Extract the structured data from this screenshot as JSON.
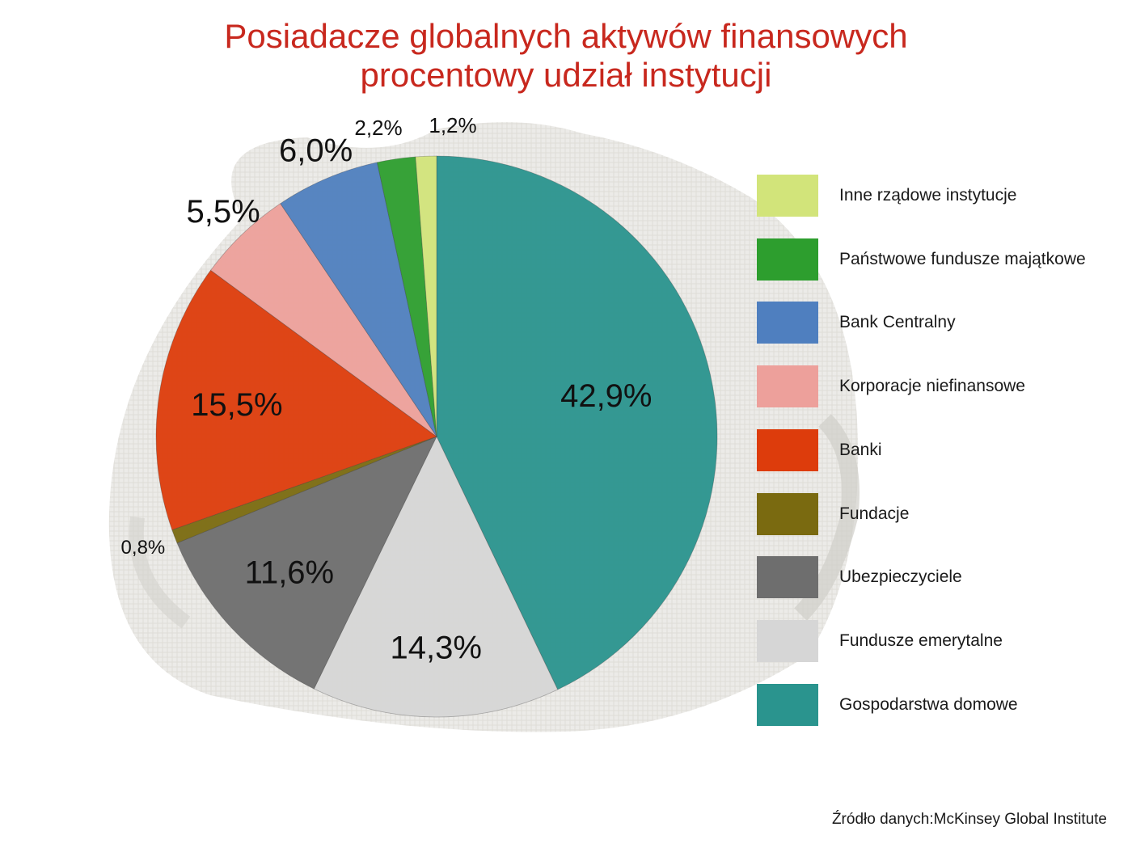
{
  "title": [
    "Posiadacze globalnych aktywów finansowych",
    "procentowy udział instytucji"
  ],
  "source": "Źródło danych:McKinsey Global Institute",
  "chart_data": {
    "type": "pie",
    "unit": "%",
    "slices": [
      {
        "name": "Gospodarstwa domowe",
        "value": 42.9,
        "label": "42,9%",
        "color": "#2a948e"
      },
      {
        "name": "Fundusze emerytalne",
        "value": 14.3,
        "label": "14,3%",
        "color": "#d6d6d6"
      },
      {
        "name": "Ubezpieczyciele",
        "value": 11.6,
        "label": "11,6%",
        "color": "#6e6e6e"
      },
      {
        "name": "Fundacje",
        "value": 0.8,
        "label": "0,8%",
        "color": "#7a6a10"
      },
      {
        "name": "Banki",
        "value": 15.5,
        "label": "15,5%",
        "color": "#dd3c0c"
      },
      {
        "name": "Korporacje niefinansowe",
        "value": 5.5,
        "label": "5,5%",
        "color": "#eda09b"
      },
      {
        "name": "Bank Centralny",
        "value": 6.0,
        "label": "6,0%",
        "color": "#4f7fbf"
      },
      {
        "name": "Państwowe fundusze majątkowe",
        "value": 2.2,
        "label": "2,2%",
        "color": "#2d9e2e"
      },
      {
        "name": "Inne rządowe instytucje",
        "value": 1.2,
        "label": "1,2%",
        "color": "#d2e47a"
      }
    ],
    "legend": {
      "placement": "right",
      "order": [
        "Inne rządowe instytucje",
        "Państwowe fundusze majątkowe",
        "Bank Centralny",
        "Korporacje niefinansowe",
        "Banki",
        "Fundacje",
        "Ubezpieczyciele",
        "Fundusze emerytalne",
        "Gospodarstwa domowe"
      ]
    }
  },
  "colors": {
    "title": "#c8281e",
    "text": "#1a1a1a",
    "background_bag": "#ececea"
  }
}
